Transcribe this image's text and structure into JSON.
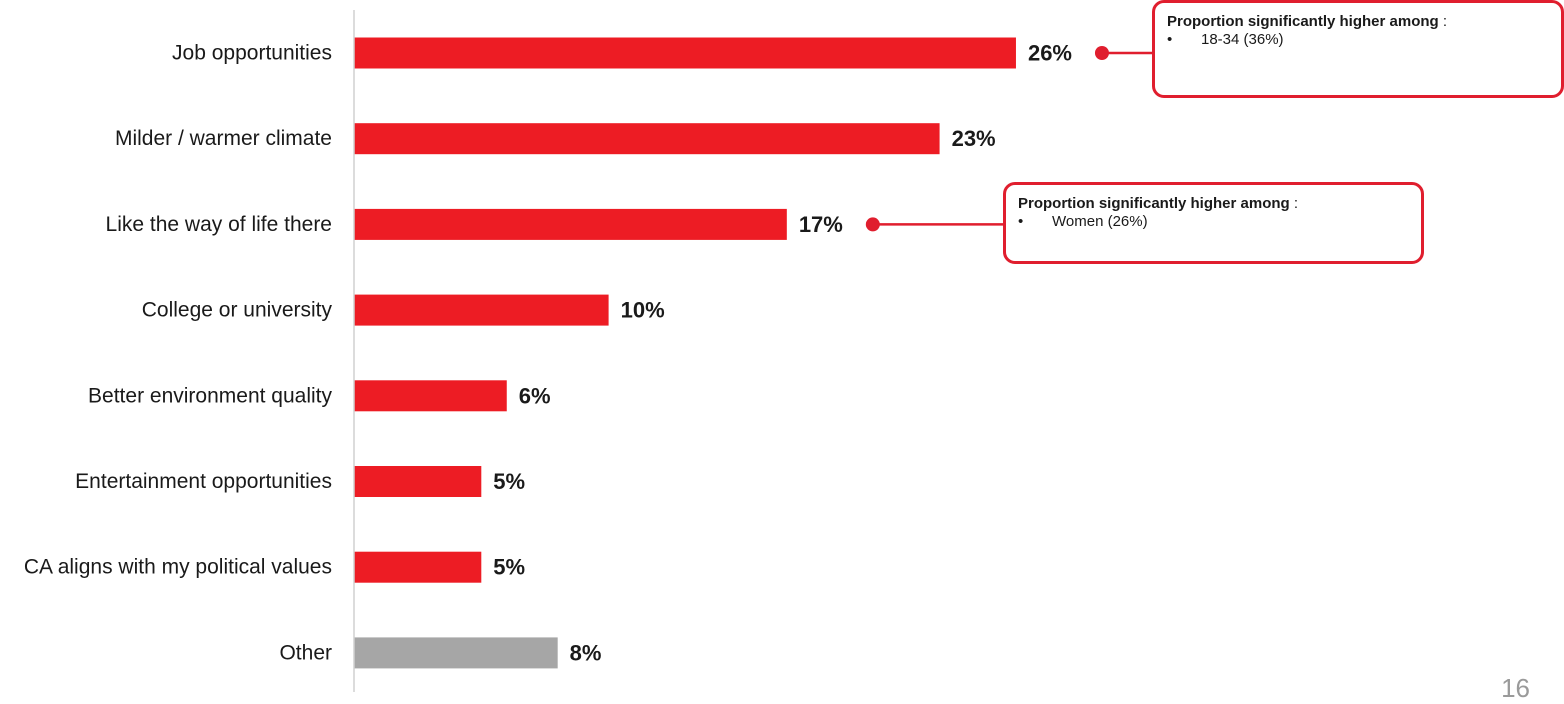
{
  "chart_data": {
    "type": "bar",
    "orientation": "horizontal",
    "categories": [
      "Job opportunities",
      "Milder / warmer climate",
      "Like the way of life there",
      "College or university",
      "Better environment quality",
      "Entertainment opportunities",
      "CA aligns with my political values",
      "Other"
    ],
    "values": [
      26,
      23,
      17,
      10,
      6,
      5,
      5,
      8
    ],
    "value_labels": [
      "26%",
      "23%",
      "17%",
      "10%",
      "6%",
      "5%",
      "5%",
      "8%"
    ],
    "unit": "%",
    "colors": [
      "#ed1c24",
      "#ed1c24",
      "#ed1c24",
      "#ed1c24",
      "#ed1c24",
      "#ed1c24",
      "#ed1c24",
      "#a6a6a6"
    ],
    "title": "",
    "xlabel": "",
    "ylabel": "",
    "xlim": [
      0,
      29
    ],
    "grid": false,
    "legend": "none"
  },
  "callouts": [
    {
      "title": "Proportion significantly higher among",
      "colon": " :",
      "bullet": "•",
      "items": [
        "18-34 (36%)"
      ],
      "anchor_category": "Job opportunities"
    },
    {
      "title": "Proportion significantly higher among",
      "colon": " :",
      "bullet": "•",
      "items": [
        "Women (26%)"
      ],
      "anchor_category": "Like the way of life there"
    }
  ],
  "colors": {
    "accent": "#ed1c24",
    "callout_border": "#e01e2e",
    "other_bar": "#a6a6a6",
    "axis": "#d0d0d0"
  },
  "page_number": "16"
}
